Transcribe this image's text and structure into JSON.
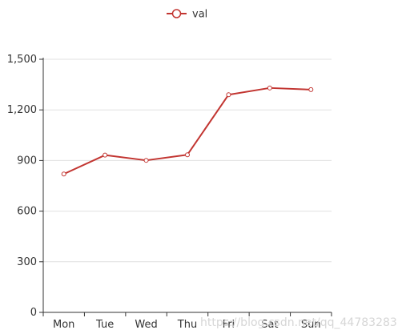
{
  "chart_data": {
    "type": "line",
    "categories": [
      "Mon",
      "Tue",
      "Wed",
      "Thu",
      "Fri",
      "Sat",
      "Sun"
    ],
    "series": [
      {
        "name": "val",
        "values": [
          820,
          932,
          901,
          934,
          1290,
          1330,
          1320
        ],
        "color": "#c23531"
      }
    ],
    "ylim": [
      0,
      1500
    ],
    "yticks": [
      0,
      300,
      600,
      900,
      1200,
      1500
    ],
    "ytick_labels": [
      "0",
      "300",
      "600",
      "900",
      "1,200",
      "1,500"
    ],
    "grid": true,
    "legend": "top-center",
    "watermark": "https://blog.csdn.net/qq_44783283"
  }
}
